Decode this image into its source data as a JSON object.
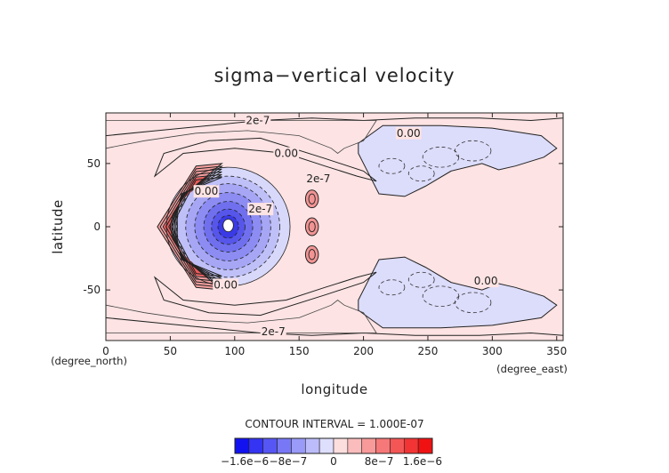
{
  "chart_data": {
    "type": "contour",
    "title": "sigma−vertical velocity",
    "xlabel": "longitude",
    "ylabel": "latitude",
    "x_unit_label": "(degree_east)",
    "y_unit_label": "(degree_north)",
    "xlim": [
      0,
      355
    ],
    "ylim": [
      -90,
      90
    ],
    "x_ticks": [
      0,
      50,
      100,
      150,
      200,
      250,
      300,
      350
    ],
    "y_ticks": [
      -50,
      0,
      50
    ],
    "contour_interval_text": "CONTOUR INTERVAL = 1.000E-07",
    "contour_labels": [
      {
        "text": "2e-7",
        "lon": 118,
        "lat": 84
      },
      {
        "text": "0.00",
        "lon": 235,
        "lat": 74
      },
      {
        "text": "0.00",
        "lon": 140,
        "lat": 58
      },
      {
        "text": "2e-7",
        "lon": 165,
        "lat": 38
      },
      {
        "text": "0.00",
        "lon": 78,
        "lat": 28
      },
      {
        "text": "2e-7",
        "lon": 120,
        "lat": 14
      },
      {
        "text": "0.00",
        "lon": 93,
        "lat": -46
      },
      {
        "text": "0.00",
        "lon": 295,
        "lat": -43
      },
      {
        "text": "2e-7",
        "lon": 130,
        "lat": -83
      }
    ],
    "colorbar": {
      "colors": [
        "#1212f0",
        "#3434f2",
        "#5656f4",
        "#7878f6",
        "#9a9af8",
        "#bcbcfa",
        "#dedefd",
        "#fddede",
        "#fabcbc",
        "#f89a9a",
        "#f67878",
        "#f45656",
        "#f23434",
        "#f01212"
      ],
      "tick_labels": [
        "−1.6e−6",
        "−8e−7",
        "0",
        "8e−7",
        "1.6e−6"
      ]
    },
    "fields": {
      "background": "weak positive (0 to 1e-7)",
      "negative_regions": "circular depression centered ~95E, 0N; northern and southern negative lobes 200-320E near +/-40",
      "positive_regions": "strong ascent arc 40-60E, cells near 160E"
    }
  }
}
